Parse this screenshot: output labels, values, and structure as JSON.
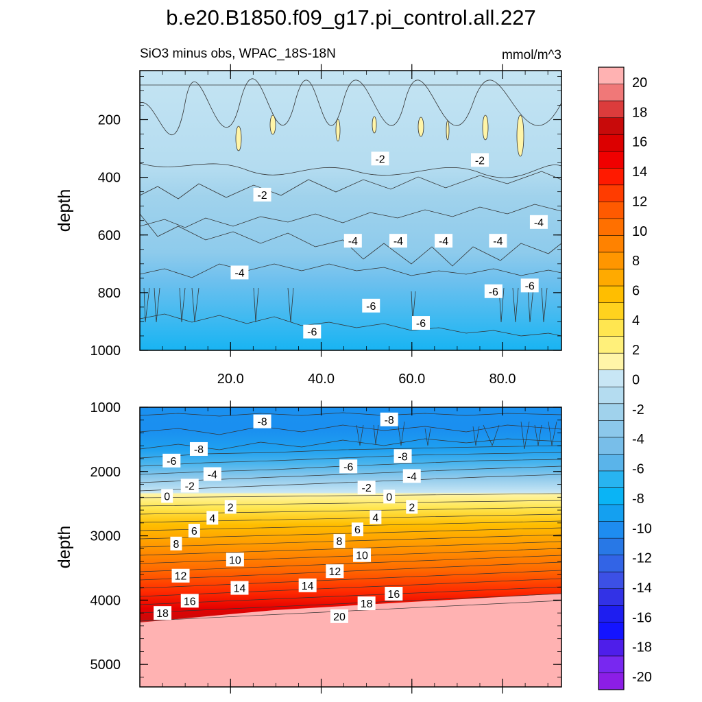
{
  "title": "b.e20.B1850.f09_g17.pi_control.all.227",
  "subtitle": "SiO3 minus obs, WPAC_18S-18N",
  "units": "mmol/m^3",
  "chart_data": [
    {
      "type": "contour",
      "panel": "upper",
      "ylabel": "depth",
      "ylim": [
        1000,
        30
      ],
      "yticks": [
        200,
        400,
        600,
        800,
        1000
      ],
      "xlim": [
        0,
        93
      ],
      "xticks": [
        20.0,
        40.0,
        60.0,
        80.0
      ],
      "xtick_labels": [
        "20.0",
        "40.0",
        "60.0",
        "80.0"
      ],
      "contour_labels": [
        {
          "text": "-2",
          "x": 27,
          "y": 460
        },
        {
          "text": "-2",
          "x": 53,
          "y": 335
        },
        {
          "text": "-2",
          "x": 75,
          "y": 340
        },
        {
          "text": "-4",
          "x": 22,
          "y": 730
        },
        {
          "text": "-4",
          "x": 47,
          "y": 620
        },
        {
          "text": "-4",
          "x": 57,
          "y": 620
        },
        {
          "text": "-4",
          "x": 67,
          "y": 620
        },
        {
          "text": "-4",
          "x": 79,
          "y": 620
        },
        {
          "text": "-4",
          "x": 88,
          "y": 555
        },
        {
          "text": "-6",
          "x": 51,
          "y": 845
        },
        {
          "text": "-6",
          "x": 38,
          "y": 935
        },
        {
          "text": "-6",
          "x": 62,
          "y": 905
        },
        {
          "text": "-6",
          "x": 78,
          "y": 795
        },
        {
          "text": "-6",
          "x": 86,
          "y": 775
        }
      ]
    },
    {
      "type": "contour",
      "panel": "lower",
      "ylabel": "depth",
      "ylim": [
        5350,
        1000
      ],
      "yticks": [
        1000,
        2000,
        3000,
        4000,
        5000
      ],
      "xlim": [
        0,
        93
      ],
      "contour_labels": [
        {
          "text": "-8",
          "x": 27,
          "y": 1220
        },
        {
          "text": "-8",
          "x": 55,
          "y": 1190
        },
        {
          "text": "-8",
          "x": 13,
          "y": 1650
        },
        {
          "text": "-8",
          "x": 58,
          "y": 1760
        },
        {
          "text": "-6",
          "x": 7,
          "y": 1830
        },
        {
          "text": "-6",
          "x": 46,
          "y": 1920
        },
        {
          "text": "-4",
          "x": 16,
          "y": 2040
        },
        {
          "text": "-4",
          "x": 60,
          "y": 2070
        },
        {
          "text": "-2",
          "x": 11,
          "y": 2220
        },
        {
          "text": "-2",
          "x": 50,
          "y": 2250
        },
        {
          "text": "0",
          "x": 6,
          "y": 2380
        },
        {
          "text": "0",
          "x": 55,
          "y": 2390
        },
        {
          "text": "2",
          "x": 20,
          "y": 2550
        },
        {
          "text": "2",
          "x": 60,
          "y": 2550
        },
        {
          "text": "4",
          "x": 16,
          "y": 2720
        },
        {
          "text": "4",
          "x": 52,
          "y": 2710
        },
        {
          "text": "6",
          "x": 12,
          "y": 2920
        },
        {
          "text": "6",
          "x": 48,
          "y": 2900
        },
        {
          "text": "8",
          "x": 8,
          "y": 3120
        },
        {
          "text": "8",
          "x": 44,
          "y": 3080
        },
        {
          "text": "10",
          "x": 21,
          "y": 3370
        },
        {
          "text": "10",
          "x": 49,
          "y": 3300
        },
        {
          "text": "12",
          "x": 9,
          "y": 3620
        },
        {
          "text": "12",
          "x": 43,
          "y": 3550
        },
        {
          "text": "14",
          "x": 22,
          "y": 3810
        },
        {
          "text": "14",
          "x": 37,
          "y": 3770
        },
        {
          "text": "16",
          "x": 11,
          "y": 4010
        },
        {
          "text": "16",
          "x": 56,
          "y": 3900
        },
        {
          "text": "18",
          "x": 5,
          "y": 4200
        },
        {
          "text": "18",
          "x": 50,
          "y": 4050
        },
        {
          "text": "20",
          "x": 44,
          "y": 4250
        }
      ]
    }
  ],
  "colorbar": {
    "levels": [
      -20,
      -18,
      -16,
      -14,
      -12,
      -10,
      -8,
      -6,
      -4,
      -2,
      0,
      2,
      4,
      6,
      8,
      10,
      12,
      14,
      16,
      18,
      20
    ],
    "tick_labels": [
      "20",
      "18",
      "16",
      "14",
      "12",
      "10",
      "8",
      "6",
      "4",
      "2",
      "0",
      "-2",
      "-4",
      "-6",
      "-8",
      "-10",
      "-12",
      "-14",
      "-16",
      "-18",
      "-20"
    ],
    "colors_top_to_bottom": [
      "#ffb2b2",
      "#f07878",
      "#dc3c3c",
      "#c80a0a",
      "#dc0000",
      "#f00000",
      "#ff1a00",
      "#ff3c00",
      "#ff5a00",
      "#ff7000",
      "#ff8200",
      "#ff9600",
      "#ffaa00",
      "#ffbe00",
      "#ffd21e",
      "#ffe650",
      "#fff07a",
      "#fff5a8",
      "#c8e6f5",
      "#b4dcf0",
      "#a0d2ec",
      "#8cc8eb",
      "#78bee9",
      "#5ab4ea",
      "#28b4f0",
      "#0ab4f5",
      "#14a0f0",
      "#1e8cf0",
      "#2878e6",
      "#3264e6",
      "#3c50e6",
      "#3232e6",
      "#1e1ef0",
      "#1414ff",
      "#4e1eea",
      "#7828f0",
      "#8c1ee6"
    ]
  }
}
